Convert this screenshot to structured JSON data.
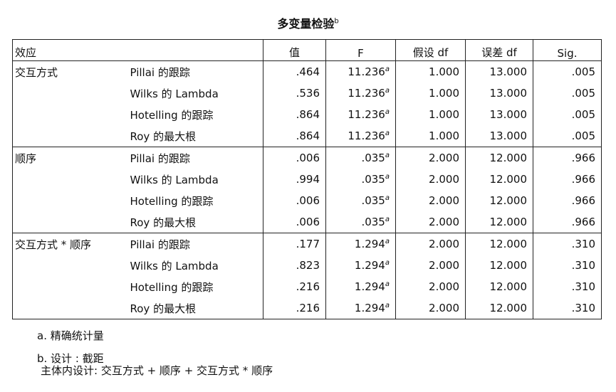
{
  "title": "多变量检验",
  "title_sup": "b",
  "headers": {
    "effect": "效应",
    "value": "值",
    "f": "F",
    "hyp_df": "假设 df",
    "err_df": "误差 df",
    "sig": "Sig."
  },
  "groups": [
    {
      "effect": "交互方式",
      "rows": [
        {
          "test": "Pillai 的跟踪",
          "value": ".464",
          "f": "11.236",
          "f_sup": "a",
          "hyp_df": "1.000",
          "err_df": "13.000",
          "sig": ".005"
        },
        {
          "test": "Wilks 的 Lambda",
          "value": ".536",
          "f": "11.236",
          "f_sup": "a",
          "hyp_df": "1.000",
          "err_df": "13.000",
          "sig": ".005"
        },
        {
          "test": "Hotelling 的跟踪",
          "value": ".864",
          "f": "11.236",
          "f_sup": "a",
          "hyp_df": "1.000",
          "err_df": "13.000",
          "sig": ".005"
        },
        {
          "test": "Roy 的最大根",
          "value": ".864",
          "f": "11.236",
          "f_sup": "a",
          "hyp_df": "1.000",
          "err_df": "13.000",
          "sig": ".005"
        }
      ]
    },
    {
      "effect": "顺序",
      "rows": [
        {
          "test": "Pillai 的跟踪",
          "value": ".006",
          "f": ".035",
          "f_sup": "a",
          "hyp_df": "2.000",
          "err_df": "12.000",
          "sig": ".966"
        },
        {
          "test": "Wilks 的 Lambda",
          "value": ".994",
          "f": ".035",
          "f_sup": "a",
          "hyp_df": "2.000",
          "err_df": "12.000",
          "sig": ".966"
        },
        {
          "test": "Hotelling 的跟踪",
          "value": ".006",
          "f": ".035",
          "f_sup": "a",
          "hyp_df": "2.000",
          "err_df": "12.000",
          "sig": ".966"
        },
        {
          "test": "Roy 的最大根",
          "value": ".006",
          "f": ".035",
          "f_sup": "a",
          "hyp_df": "2.000",
          "err_df": "12.000",
          "sig": ".966"
        }
      ]
    },
    {
      "effect": "交互方式 * 顺序",
      "rows": [
        {
          "test": "Pillai 的跟踪",
          "value": ".177",
          "f": "1.294",
          "f_sup": "a",
          "hyp_df": "2.000",
          "err_df": "12.000",
          "sig": ".310"
        },
        {
          "test": "Wilks 的 Lambda",
          "value": ".823",
          "f": "1.294",
          "f_sup": "a",
          "hyp_df": "2.000",
          "err_df": "12.000",
          "sig": ".310"
        },
        {
          "test": "Hotelling 的跟踪",
          "value": ".216",
          "f": "1.294",
          "f_sup": "a",
          "hyp_df": "2.000",
          "err_df": "12.000",
          "sig": ".310"
        },
        {
          "test": "Roy 的最大根",
          "value": ".216",
          "f": "1.294",
          "f_sup": "a",
          "hyp_df": "2.000",
          "err_df": "12.000",
          "sig": ".310"
        }
      ]
    }
  ],
  "footnotes": {
    "a": "a. 精确统计量",
    "b1": "b. 设计 : 截距",
    "b2": "主体内设计: 交互方式 + 顺序 + 交互方式 * 顺序"
  }
}
